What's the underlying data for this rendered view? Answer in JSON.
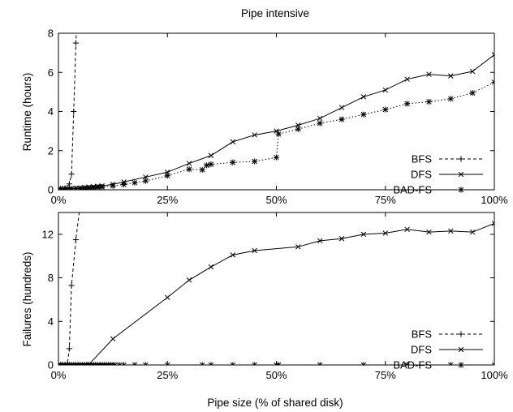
{
  "chart_data": [
    {
      "type": "line",
      "title": "Pipe intensive",
      "xlabel": "",
      "ylabel": "Runtime (hours)",
      "xlim": [
        0,
        100
      ],
      "ylim": [
        0,
        8
      ],
      "xticks": [
        0,
        25,
        50,
        75,
        100
      ],
      "xtick_labels": [
        "0%",
        "25%",
        "50%",
        "75%",
        "100%"
      ],
      "yticks": [
        0,
        2,
        4,
        6,
        8
      ],
      "ytick_labels": [
        "0",
        "2",
        "4",
        "6",
        "8"
      ],
      "grid": false,
      "legend_position": "bottom-right",
      "series": [
        {
          "name": "BFS",
          "style": "dashed",
          "marker": "plus",
          "x": [
            0,
            0.5,
            1,
            1.5,
            2,
            2.5,
            3,
            3.5,
            4,
            4.5
          ],
          "y": [
            0.05,
            0.05,
            0.06,
            0.08,
            0.1,
            0.3,
            0.8,
            4.0,
            7.5,
            9.5
          ]
        },
        {
          "name": "DFS",
          "style": "solid",
          "marker": "x",
          "x": [
            0,
            1,
            2,
            3,
            4,
            5,
            6,
            7,
            8,
            9,
            10,
            12.5,
            15,
            20,
            25,
            30,
            35,
            40,
            45,
            50,
            55,
            60,
            65,
            70,
            75,
            80,
            85,
            90,
            95,
            100
          ],
          "y": [
            0.05,
            0.05,
            0.06,
            0.07,
            0.08,
            0.1,
            0.12,
            0.14,
            0.16,
            0.18,
            0.2,
            0.28,
            0.4,
            0.65,
            0.9,
            1.35,
            1.75,
            2.45,
            2.8,
            3.0,
            3.3,
            3.65,
            4.2,
            4.75,
            5.1,
            5.65,
            5.9,
            5.82,
            6.05,
            6.9
          ]
        },
        {
          "name": "BAD-FS",
          "style": "dotted",
          "marker": "star",
          "x": [
            0,
            1,
            2,
            3,
            4,
            5,
            6,
            7,
            8,
            9,
            10,
            12.5,
            15,
            17.5,
            20,
            25,
            30,
            33,
            34,
            35,
            40,
            45,
            50,
            50.5,
            55,
            60,
            65,
            70,
            75,
            80,
            85,
            90,
            95,
            100
          ],
          "y": [
            0.05,
            0.05,
            0.05,
            0.06,
            0.06,
            0.07,
            0.08,
            0.09,
            0.1,
            0.12,
            0.14,
            0.2,
            0.27,
            0.36,
            0.45,
            0.72,
            1.05,
            1.02,
            1.25,
            1.3,
            1.4,
            1.45,
            1.65,
            2.85,
            3.1,
            3.4,
            3.6,
            3.85,
            4.1,
            4.4,
            4.5,
            4.65,
            4.95,
            5.5
          ]
        }
      ]
    },
    {
      "type": "line",
      "title": "",
      "xlabel": "Pipe size (% of shared disk)",
      "ylabel": "Failures (hundreds)",
      "xlim": [
        0,
        100
      ],
      "ylim": [
        0,
        14
      ],
      "xticks": [
        0,
        25,
        50,
        75,
        100
      ],
      "xtick_labels": [
        "0%",
        "25%",
        "50%",
        "75%",
        "100%"
      ],
      "yticks": [
        0,
        4,
        8,
        12
      ],
      "ytick_labels": [
        "0",
        "4",
        "8",
        "12"
      ],
      "grid": false,
      "legend_position": "bottom-right",
      "series": [
        {
          "name": "BFS",
          "style": "dashed",
          "marker": "plus",
          "x": [
            0,
            0.5,
            1,
            1.5,
            2,
            2.5,
            3,
            4,
            5
          ],
          "y": [
            0,
            0,
            0,
            0,
            0,
            1.5,
            7.3,
            11.5,
            14.8
          ]
        },
        {
          "name": "DFS",
          "style": "solid",
          "marker": "x",
          "x": [
            0,
            1,
            2,
            3,
            4,
            5,
            6,
            7,
            12.5,
            25,
            30,
            35,
            40,
            45,
            55,
            60,
            65,
            70,
            75,
            80,
            85,
            90,
            95,
            100
          ],
          "y": [
            0,
            0,
            0,
            0,
            0,
            0,
            0,
            0.05,
            2.4,
            6.2,
            7.8,
            9.0,
            10.1,
            10.5,
            10.85,
            11.4,
            11.6,
            12.0,
            12.1,
            12.45,
            12.2,
            12.3,
            12.2,
            13.0
          ]
        },
        {
          "name": "BAD-FS",
          "style": "dotted",
          "marker": "star",
          "x": [
            0,
            0.5,
            1,
            1.5,
            2,
            2.5,
            3,
            3.5,
            4,
            4.5,
            5,
            5.5,
            6,
            6.5,
            7,
            7.5,
            8,
            8.5,
            9,
            9.5,
            10,
            10.5,
            11,
            11.5,
            12,
            12.5,
            13,
            14,
            15,
            17.5,
            20,
            25,
            33,
            35,
            40,
            45,
            50,
            50.5,
            60,
            70,
            80,
            90,
            100
          ],
          "y": [
            0,
            0,
            0,
            0,
            0,
            0,
            0,
            0,
            0,
            0,
            0,
            0,
            0,
            0,
            0,
            0,
            0,
            0,
            0,
            0,
            0,
            0,
            0,
            0,
            0,
            0,
            0,
            0,
            0,
            0,
            0,
            0,
            0,
            0,
            0,
            0,
            0,
            0,
            0,
            0,
            0,
            0,
            0
          ]
        }
      ]
    }
  ]
}
